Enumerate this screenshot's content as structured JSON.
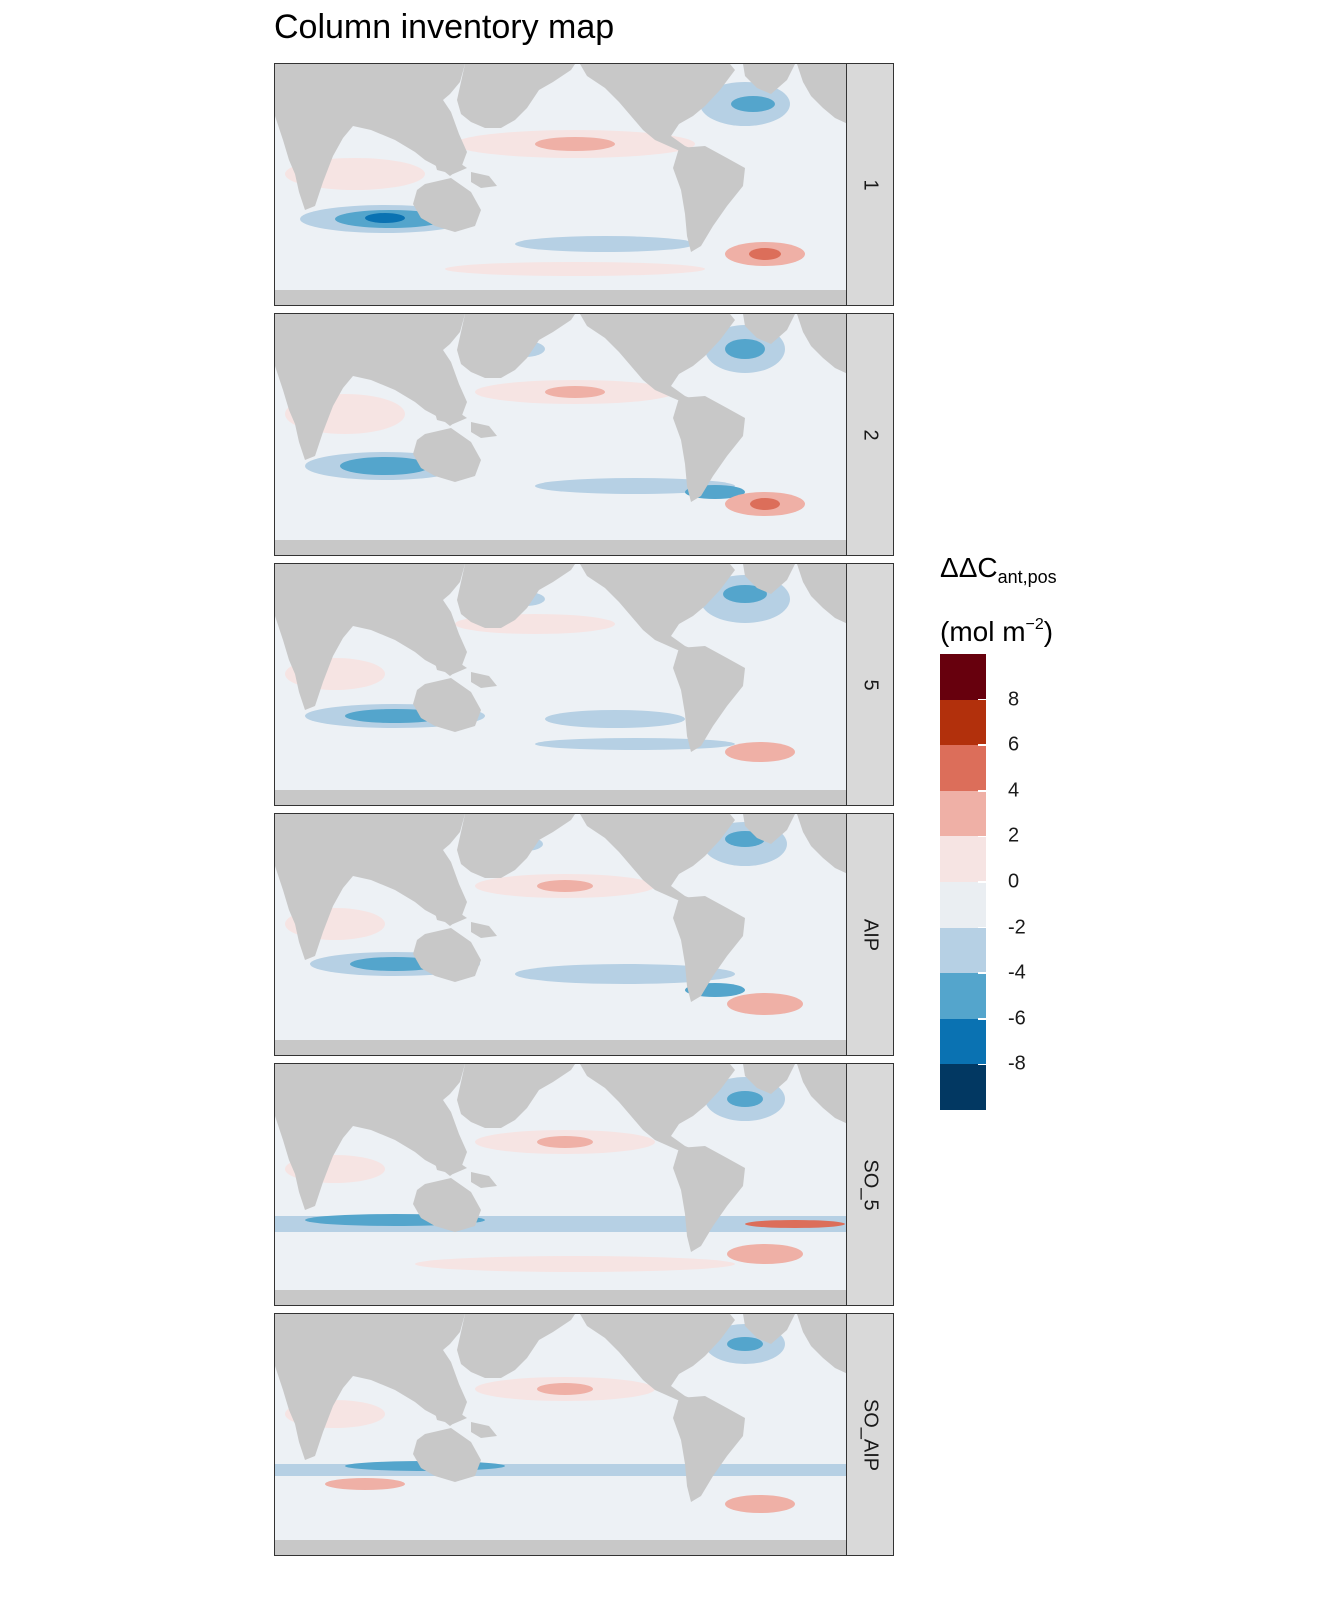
{
  "title": "Column inventory map",
  "panels": [
    "1",
    "2",
    "5",
    "AIP",
    "SO_5",
    "SO_AIP"
  ],
  "legend": {
    "title_main": "ΔΔC",
    "title_sub": "ant,pos",
    "unit_prefix": "(mol m",
    "unit_sup": "−2",
    "unit_suffix": ")",
    "ticks": [
      "8",
      "6",
      "4",
      "2",
      "0",
      "-2",
      "-4",
      "-6",
      "-8"
    ],
    "colors": [
      "#67000d",
      "#b2300c",
      "#dc6e5a",
      "#efb0a6",
      "#f6e4e3",
      "#eaeef2",
      "#b6d0e4",
      "#54a5cc",
      "#0a72b2",
      "#023862"
    ]
  },
  "colors": {
    "land": "#c8c8c8",
    "ocean": "#edf1f5",
    "strip": "#d9d9d9"
  }
}
